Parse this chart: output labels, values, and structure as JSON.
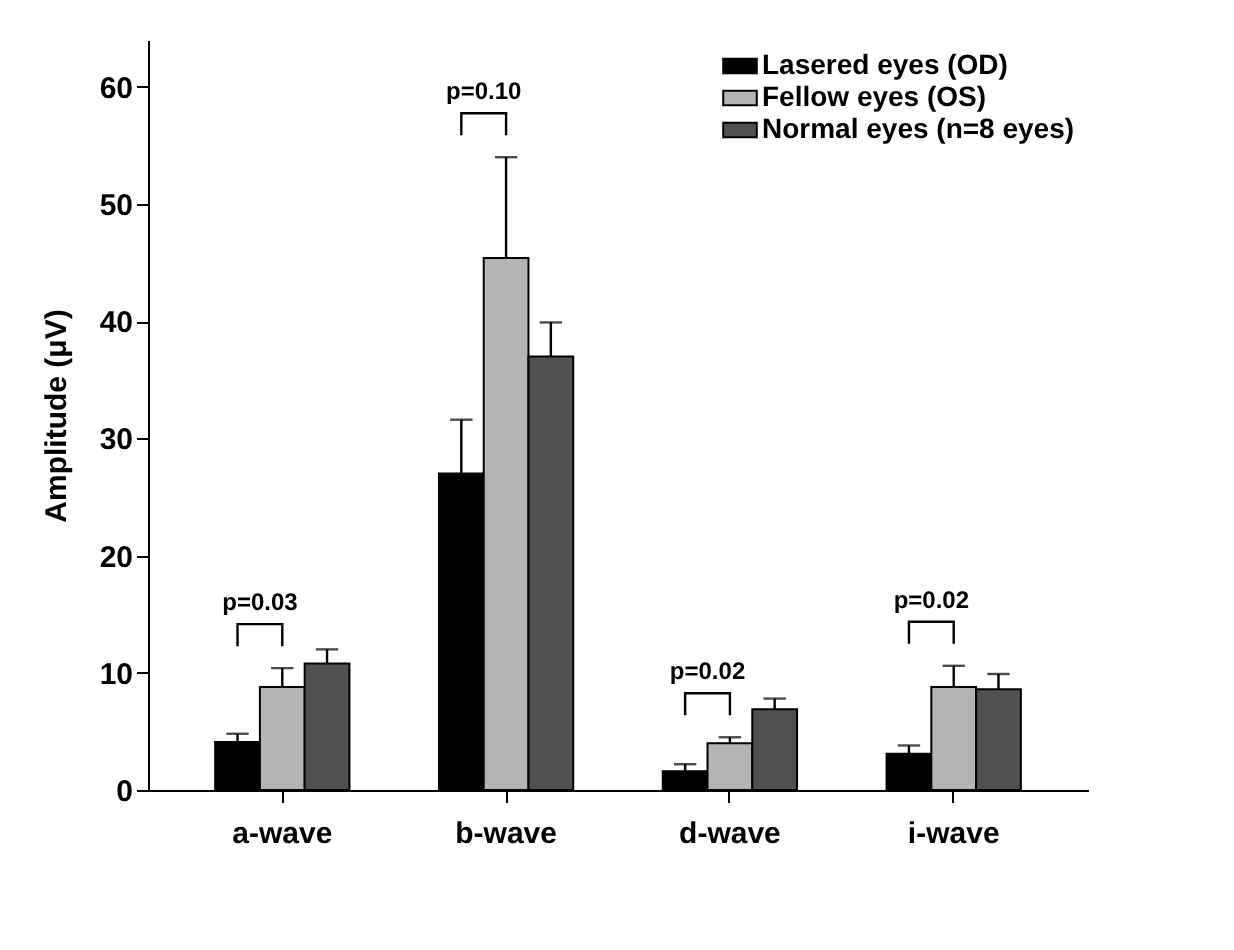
{
  "chart_data": {
    "type": "bar",
    "ylabel": "Amplitude (μV)",
    "categories": [
      "a-wave",
      "b-wave",
      "d-wave",
      "i-wave"
    ],
    "series": [
      {
        "name": "Lasered eyes (OD)",
        "color": "#000000",
        "values": [
          4.1,
          27,
          1.6,
          3.1
        ],
        "errors": [
          [
            4.1,
            4.8
          ],
          [
            27,
            31.6
          ],
          [
            1.6,
            2.2
          ],
          [
            3.1,
            3.8
          ]
        ]
      },
      {
        "name": "Fellow eyes (OS)",
        "color": "#b4b4b4",
        "values": [
          8.8,
          45.4,
          4.0,
          8.8
        ],
        "errors": [
          [
            8.8,
            10.4
          ],
          [
            45.4,
            54
          ],
          [
            4.0,
            4.5
          ],
          [
            8.8,
            10.6
          ]
        ]
      },
      {
        "name": "Normal eyes (n=8 eyes)",
        "color": "#505050",
        "values": [
          10.8,
          37,
          6.9,
          8.6
        ],
        "errors": [
          [
            10.8,
            12.0
          ],
          [
            37,
            39.9
          ],
          [
            6.9,
            7.8
          ],
          [
            8.6,
            9.9
          ]
        ]
      }
    ],
    "ylim": [
      0,
      64
    ],
    "yticks": [
      0,
      10,
      20,
      30,
      40,
      50,
      60
    ],
    "grid": false,
    "legend": "top right",
    "annotations": [
      "p=0.03",
      "p=0.10",
      "p=0.02",
      "p=0.02"
    ]
  }
}
